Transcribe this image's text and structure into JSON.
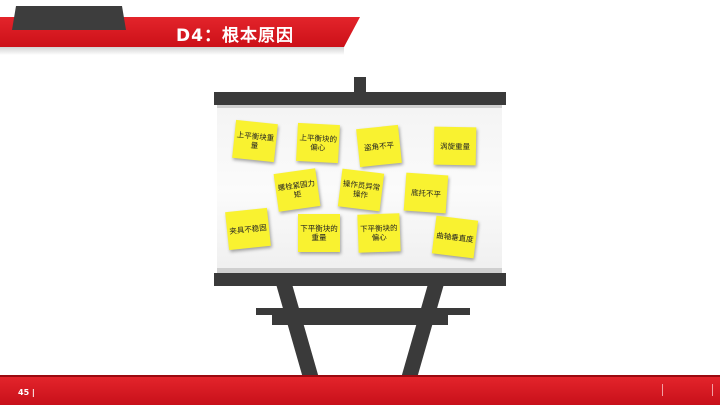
{
  "header": {
    "title": "D4：根本原因"
  },
  "notes": [
    "上平衡块重量",
    "上平衡块的偏心",
    "盗角不平",
    "涡旋重量",
    "螺栓紧固力矩",
    "操作员异常操作",
    "底托不平",
    "夹具不稳固",
    "下平衡块的重量",
    "下平衡块的偏心",
    "曲轴垂直度"
  ],
  "footer": {
    "page_number": "45 |"
  },
  "colors": {
    "brand_red": "#e3242b",
    "note_yellow": "#f9f230",
    "easel_gray": "#3a3a3a"
  }
}
